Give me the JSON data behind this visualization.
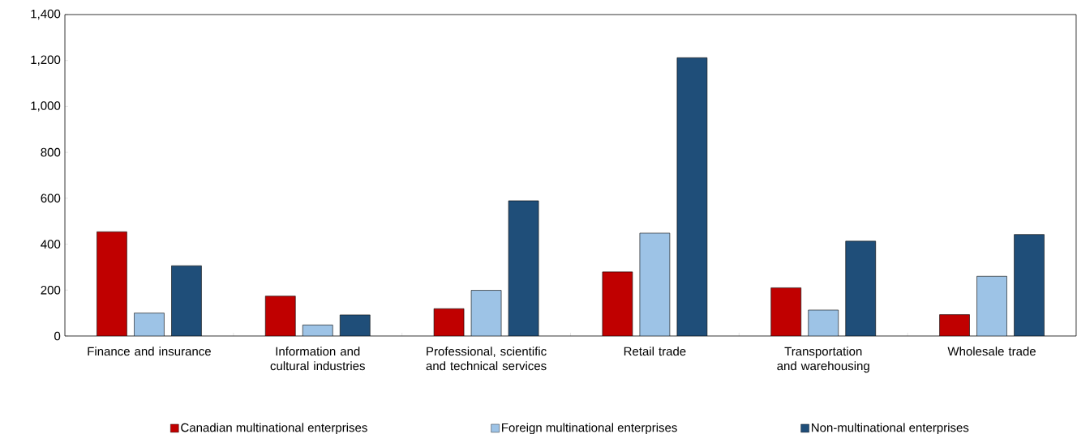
{
  "chart_data": {
    "type": "bar",
    "categories": [
      "Finance and insurance",
      "Information and cultural industries",
      "Professional, scientific and technical services",
      "Retail trade",
      "Transportation and warehousing",
      "Wholesale trade"
    ],
    "series": [
      {
        "name": "Canadian multinational enterprises",
        "color": "#c00000",
        "values": [
          454,
          174,
          119,
          279,
          210,
          93
        ]
      },
      {
        "name": "Foreign multinational enterprises",
        "color": "#9dc3e6",
        "values": [
          100,
          48,
          199,
          448,
          113,
          260
        ]
      },
      {
        "name": "Non-multinational enterprises",
        "color": "#1f4e79",
        "values": [
          306,
          92,
          589,
          1212,
          413,
          442
        ]
      }
    ],
    "ylim": [
      0,
      1400
    ],
    "yticks": [
      0,
      200,
      400,
      600,
      800,
      {
        "value": 1000,
        "label": "1,000"
      },
      {
        "value": 1200,
        "label": "1,200"
      },
      {
        "value": 1400,
        "label": "1,400"
      }
    ],
    "grid": false,
    "legend": "bottom"
  }
}
